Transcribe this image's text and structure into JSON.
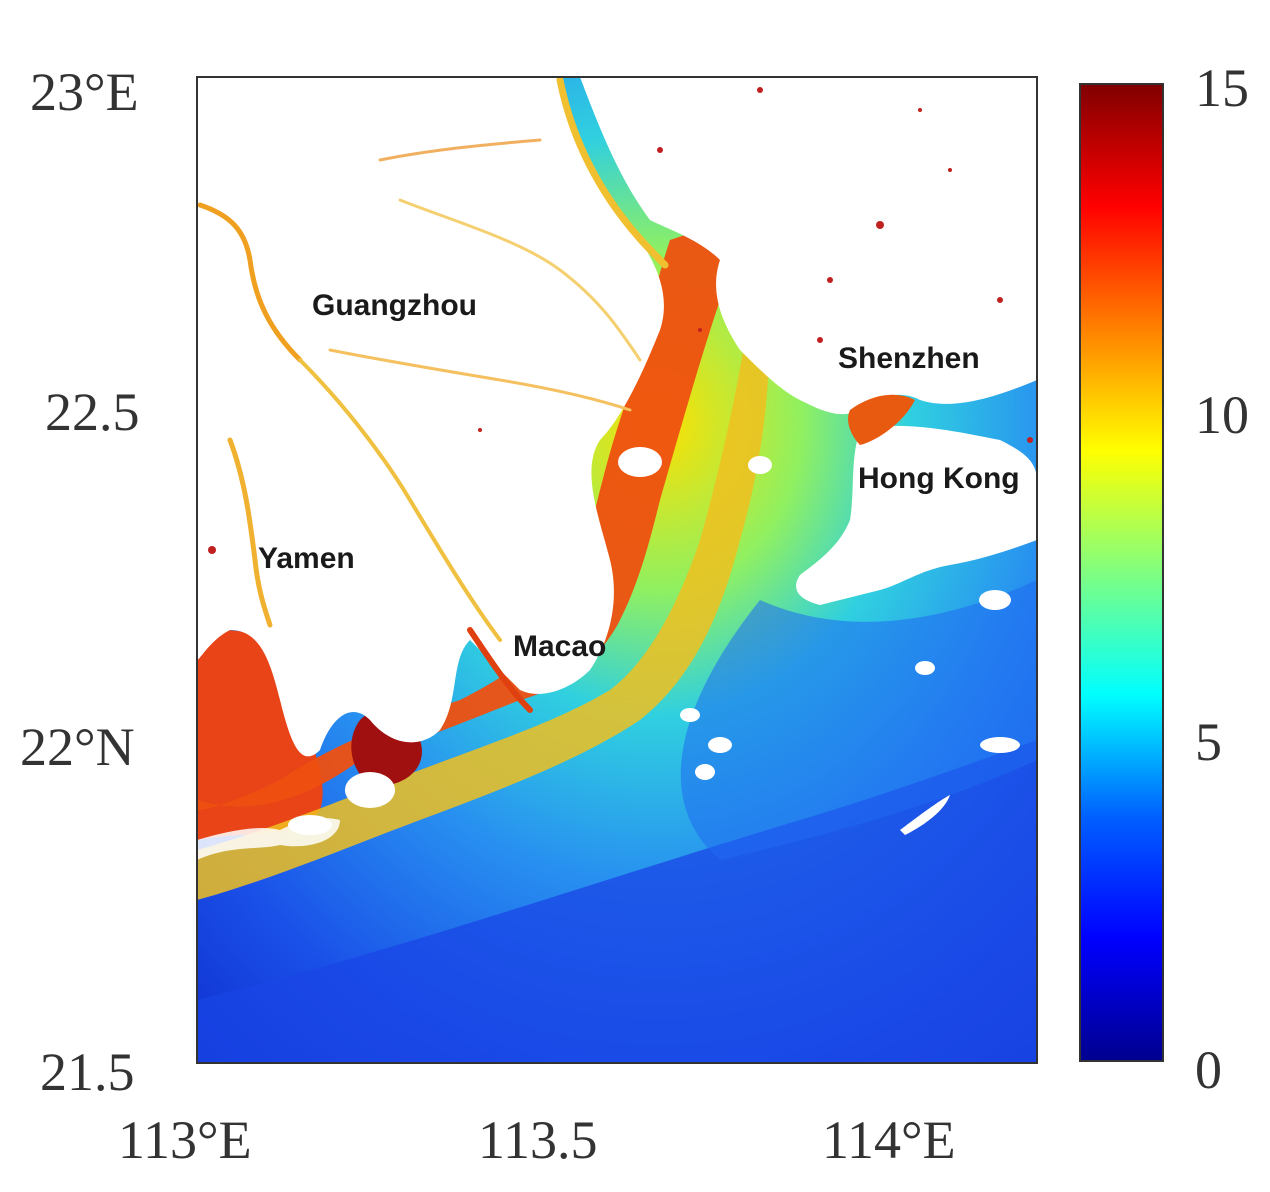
{
  "map": {
    "lat_ticks": [
      "23°E",
      "22.5",
      "22°N",
      "21.5"
    ],
    "lon_ticks": [
      "113°E",
      "113.5",
      "114°E"
    ],
    "places": [
      {
        "name": "Guangzhou"
      },
      {
        "name": "Shenzhen"
      },
      {
        "name": "Hong Kong"
      },
      {
        "name": "Yamen"
      },
      {
        "name": "Macao"
      }
    ],
    "lon_range": [
      113.0,
      114.22
    ],
    "lat_range": [
      21.5,
      23.0
    ]
  },
  "colorbar": {
    "ticks": [
      "15",
      "10",
      "5",
      "0"
    ],
    "range": [
      0,
      15
    ],
    "colormap": "jet",
    "colors": [
      "#00008f",
      "#0000ff",
      "#0080ff",
      "#00ffff",
      "#80ff80",
      "#ffff00",
      "#ff8000",
      "#ff0000",
      "#800000"
    ]
  },
  "palette": {
    "land": "#ffffff",
    "deep_water": "#1a3fe0",
    "mid_water": "#2aa0f0",
    "coastal_high": "#e83a10",
    "river": "#f0a020"
  }
}
